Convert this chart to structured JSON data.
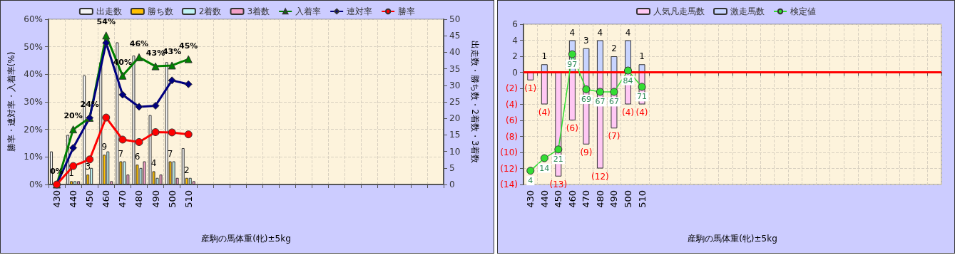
{
  "chart_data": [
    {
      "type": "bar",
      "xlabel": "産駒の馬体重(牝)±5kg",
      "ylabel": "勝率・連対率・入着率(%)",
      "y2label": "出走数・勝ち数・2着数・3着数",
      "categories": [
        "430",
        "440",
        "450",
        "460",
        "470",
        "480",
        "490",
        "500",
        "510",
        null,
        null,
        null,
        null,
        null,
        null,
        null,
        null,
        null,
        null,
        null,
        null,
        null,
        null,
        null
      ],
      "ylim": [
        0,
        60
      ],
      "yticks": [
        {
          "value": 0,
          "label": "0%"
        },
        {
          "value": 10,
          "label": "10%"
        },
        {
          "value": 20,
          "label": "20%"
        },
        {
          "value": 30,
          "label": "30%"
        },
        {
          "value": 40,
          "label": "40%"
        },
        {
          "value": 50,
          "label": "50%"
        },
        {
          "value": 60,
          "label": "60%"
        }
      ],
      "y2lim": [
        0,
        50
      ],
      "y2ticks": [
        0,
        5,
        10,
        15,
        20,
        25,
        30,
        35,
        40,
        45,
        50
      ],
      "grid": true,
      "legend": "top",
      "series": [
        {
          "name": "出走数",
          "axis": "y2",
          "color": "#f4f4f4",
          "values": [
            10,
            15,
            33,
            37,
            43,
            39,
            21,
            37,
            11,
            null,
            null,
            null,
            null,
            null,
            null,
            null,
            null,
            null,
            null,
            null,
            null,
            null,
            null,
            null
          ]
        },
        {
          "name": "勝ち数",
          "axis": "y2",
          "color": "#ffc000",
          "values": [
            0,
            1,
            3,
            9,
            7,
            6,
            4,
            7,
            2,
            null,
            null,
            null,
            null,
            null,
            null,
            null,
            null,
            null,
            null,
            null,
            null,
            null,
            null,
            null
          ],
          "value_labels": [
            null,
            "1",
            "3",
            "9",
            "7",
            "6",
            "4",
            "7",
            "2",
            null,
            null,
            null,
            null,
            null,
            null,
            null,
            null,
            null,
            null,
            null,
            null,
            null,
            null,
            null
          ]
        },
        {
          "name": "2着数",
          "axis": "y2",
          "color": "#c0f4f4",
          "values": [
            0,
            1,
            5,
            10,
            7,
            5,
            2,
            7,
            2,
            null,
            null,
            null,
            null,
            null,
            null,
            null,
            null,
            null,
            null,
            null,
            null,
            null,
            null,
            null
          ]
        },
        {
          "name": "3着数",
          "axis": "y2",
          "color": "#f4a0c8",
          "values": [
            0,
            1,
            0,
            1,
            3,
            7,
            3,
            2,
            1,
            null,
            null,
            null,
            null,
            null,
            null,
            null,
            null,
            null,
            null,
            null,
            null,
            null,
            null,
            null
          ]
        },
        {
          "name": "入着率",
          "type": "line",
          "marker": "triangle",
          "color": "#008000",
          "values": [
            0,
            20,
            24.2,
            54.1,
            39.5,
            46.2,
            42.9,
            43.2,
            45.5,
            null,
            null,
            null,
            null,
            null,
            null,
            null,
            null,
            null,
            null,
            null,
            null,
            null,
            null,
            null
          ],
          "value_labels": [
            "0%",
            "20%",
            "24%",
            "54%",
            "40%",
            "46%",
            "43%",
            "43%",
            "45%",
            null,
            null,
            null,
            null,
            null,
            null,
            null,
            null,
            null,
            null,
            null,
            null,
            null,
            null,
            null
          ]
        },
        {
          "name": "連対率",
          "type": "line",
          "marker": "diamond",
          "color": "#000080",
          "values": [
            0,
            13.3,
            24.2,
            51.4,
            32.6,
            28.2,
            28.6,
            37.8,
            36.4,
            null,
            null,
            null,
            null,
            null,
            null,
            null,
            null,
            null,
            null,
            null,
            null,
            null,
            null,
            null
          ]
        },
        {
          "name": "勝率",
          "type": "line",
          "marker": "circle",
          "color": "#ff0000",
          "values": [
            0,
            6.7,
            9.1,
            24.3,
            16.3,
            15.4,
            19,
            18.9,
            18.2,
            null,
            null,
            null,
            null,
            null,
            null,
            null,
            null,
            null,
            null,
            null,
            null,
            null,
            null,
            null
          ]
        }
      ]
    },
    {
      "type": "bar",
      "xlabel": "産駒の馬体重(牝)±5kg",
      "stacked": true,
      "categories": [
        "430",
        "440",
        "450",
        "460",
        "470",
        "480",
        "490",
        "500",
        "510",
        null,
        null,
        null,
        null,
        null,
        null,
        null,
        null,
        null,
        null,
        null,
        null,
        null,
        null,
        null,
        null,
        null,
        null,
        null,
        null,
        null
      ],
      "ylim": [
        -14,
        6
      ],
      "yticks": [
        6,
        4,
        2,
        0,
        {
          "value": -2,
          "label": "(2)"
        },
        {
          "value": -4,
          "label": "(4)"
        },
        {
          "value": -6,
          "label": "(6)"
        },
        {
          "value": -8,
          "label": "(8)"
        },
        {
          "value": -10,
          "label": "(10)"
        },
        {
          "value": -12,
          "label": "(12)"
        },
        {
          "value": -14,
          "label": "(14)"
        }
      ],
      "y2lim": [
        -7,
        121
      ],
      "grid": true,
      "legend": "top",
      "ref_lines": [
        {
          "axis": "y",
          "value": 0,
          "color": "#ff0000"
        }
      ],
      "series": [
        {
          "name": "人気凡走馬数",
          "color": "#ffc8f4",
          "values": [
            -1,
            -4,
            -13,
            -6,
            -9,
            -12,
            -7,
            -4,
            -4,
            null,
            null,
            null,
            null,
            null,
            null,
            null,
            null,
            null,
            null,
            null,
            null,
            null,
            null,
            null,
            null,
            null,
            null,
            null,
            null,
            null
          ],
          "value_labels": [
            "(1)",
            "(4)",
            "(13)",
            "(6)",
            "(9)",
            "(12)",
            "(7)",
            "(4)",
            "(4)",
            null,
            null,
            null,
            null,
            null,
            null,
            null,
            null,
            null,
            null,
            null,
            null,
            null,
            null,
            null,
            null,
            null,
            null,
            null,
            null,
            null
          ]
        },
        {
          "name": "激走馬数",
          "color": "#c8d4ff",
          "values": [
            0,
            1,
            0,
            4,
            3,
            4,
            2,
            4,
            1,
            null,
            null,
            null,
            null,
            null,
            null,
            null,
            null,
            null,
            null,
            null,
            null,
            null,
            null,
            null,
            null,
            null,
            null,
            null,
            null,
            null
          ],
          "value_labels": [
            null,
            "1",
            null,
            "4",
            "3",
            "4",
            "2",
            "4",
            "1",
            null,
            null,
            null,
            null,
            null,
            null,
            null,
            null,
            null,
            null,
            null,
            null,
            null,
            null,
            null,
            null,
            null,
            null,
            null,
            null,
            null
          ]
        },
        {
          "name": "検定値",
          "type": "line",
          "axis": "y2",
          "marker": "circle",
          "color": "#33dd33",
          "values": [
            4,
            14,
            21,
            97,
            69,
            67,
            67,
            84,
            71,
            null,
            null,
            null,
            null,
            null,
            null,
            null,
            null,
            null,
            null,
            null,
            null,
            null,
            null,
            null,
            null,
            null,
            null,
            null,
            null,
            null
          ],
          "value_labels": [
            "4",
            "14",
            "21",
            "97",
            "69",
            "67",
            "67",
            "84",
            "71",
            null,
            null,
            null,
            null,
            null,
            null,
            null,
            null,
            null,
            null,
            null,
            null,
            null,
            null,
            null,
            null,
            null,
            null,
            null,
            null,
            null
          ]
        }
      ]
    }
  ]
}
